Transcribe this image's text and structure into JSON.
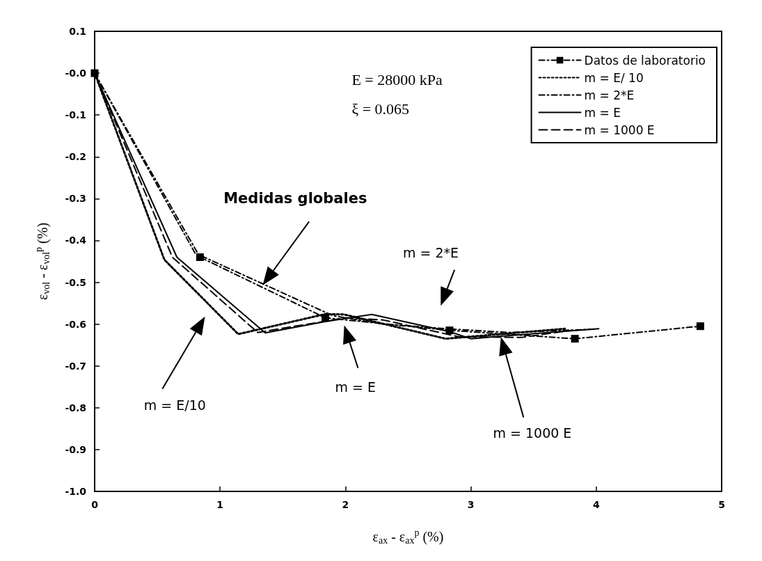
{
  "chart_data": {
    "type": "line",
    "xlabel": "ε$_{ax}$ - ε$_{ax}$$^{p}$ (%)",
    "ylabel": "ε$_{vol}$ - ε$_{vol}$$^{p}$ (%)",
    "xlim": [
      0,
      5
    ],
    "xticks": [
      0,
      1,
      2,
      3,
      4,
      5
    ],
    "ylim": [
      -1.0,
      0.1
    ],
    "yticks": [
      {
        "value": -1.0,
        "label": "-1.0"
      },
      -0.9,
      -0.8,
      -0.7,
      -0.6,
      -0.5,
      -0.4,
      -0.3,
      -0.2,
      -0.1,
      {
        "value": 0,
        "label": "-0.0"
      },
      0.1
    ],
    "grid": false,
    "legend": "top right",
    "series": [
      {
        "name": "Datos de laboratorio",
        "color": "#000000",
        "marker": "square",
        "line_style": "dashdot",
        "x": [
          0,
          0.84,
          1.84,
          2.83,
          3.83,
          4.83
        ],
        "values": [
          0,
          -0.44,
          -0.585,
          -0.615,
          -0.635,
          -0.605
        ]
      },
      {
        "name": "m = E/ 10",
        "color": "#000000",
        "marker": "none",
        "line_style": "dotted",
        "x": [
          0,
          0.556,
          1.145,
          1.84,
          1.99,
          2.8,
          3.2,
          3.75
        ],
        "values": [
          0,
          -0.446,
          -0.624,
          -0.576,
          -0.577,
          -0.635,
          -0.625,
          -0.611
        ]
      },
      {
        "name": "m = 2*E",
        "color": "#000000",
        "marker": "none",
        "line_style": "dashdot",
        "x": [
          0,
          0.8,
          1.9,
          2.3,
          2.85,
          3.3,
          4.0
        ],
        "values": [
          0,
          -0.43,
          -0.58,
          -0.6,
          -0.612,
          -0.62,
          -0.612
        ]
      },
      {
        "name": "m = E",
        "color": "#000000",
        "marker": "none",
        "line_style": "solid",
        "x": [
          0,
          0.656,
          1.36,
          1.84,
          2.21,
          2.83,
          3.0,
          3.24,
          4.02
        ],
        "values": [
          0,
          -0.44,
          -0.621,
          -0.594,
          -0.577,
          -0.618,
          -0.635,
          -0.629,
          -0.611
        ]
      },
      {
        "name": "m = 1000 E",
        "color": "#000000",
        "marker": "none",
        "line_style": "dashed",
        "x": [
          0,
          0.62,
          1.3,
          2.0,
          2.3,
          2.9,
          3.4,
          3.8
        ],
        "values": [
          0,
          -0.44,
          -0.62,
          -0.585,
          -0.59,
          -0.63,
          -0.632,
          -0.615
        ]
      }
    ],
    "annotations": [
      "E = 28000 kPa",
      "ξ = 0.065",
      "Medidas globales",
      "m = 2*E",
      "m = E/10",
      "m = E",
      "m = 1000 E"
    ]
  }
}
